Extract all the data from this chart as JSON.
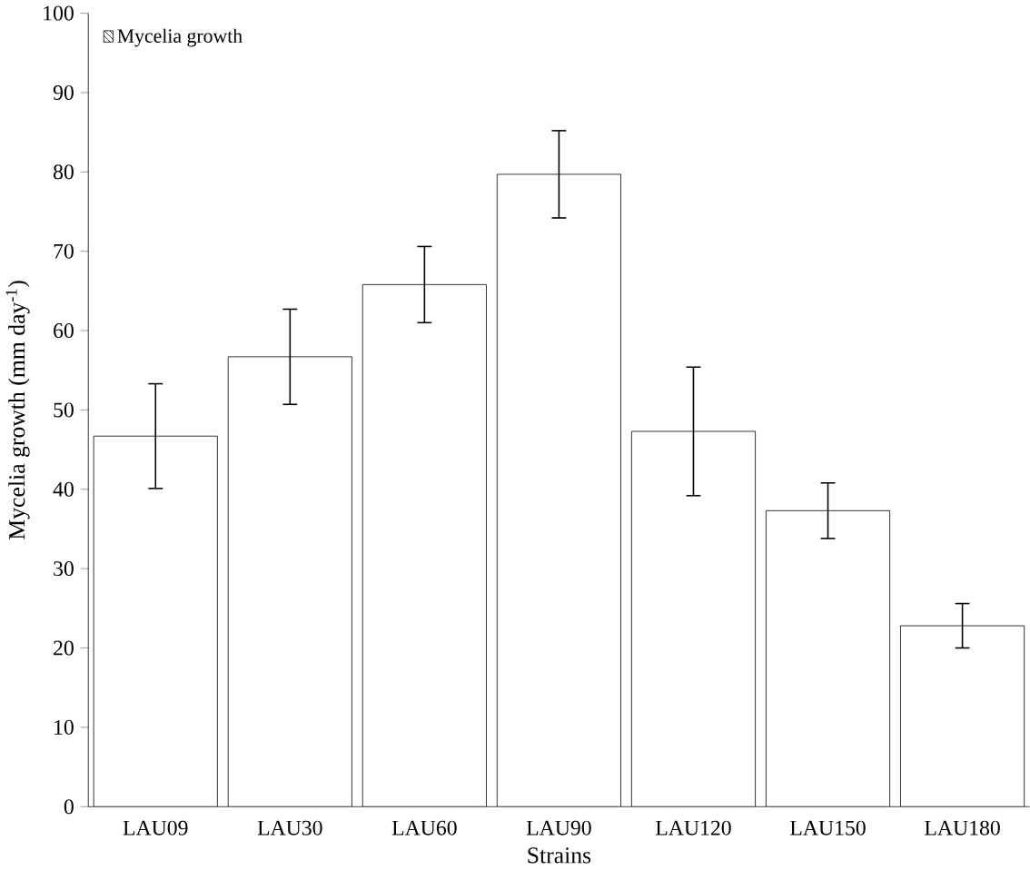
{
  "chart_data": {
    "type": "bar",
    "xlabel": "Strains",
    "ylabel": "Mycelia growth (mm day$^{-1}$)",
    "categories": [
      "LAU09",
      "LAU30",
      "LAU60",
      "LAU90",
      "LAU120",
      "LAU150",
      "LAU180"
    ],
    "series": [
      {
        "name": "Mycelia growth",
        "color": "#ffffff",
        "values": [
          46.7,
          56.7,
          65.8,
          79.7,
          47.3,
          37.3,
          22.8
        ],
        "errors": [
          6.6,
          6,
          4.8,
          5.5,
          8.1,
          3.5,
          2.8
        ]
      }
    ],
    "ylim": [
      0,
      100
    ],
    "yticks": [
      0,
      10,
      20,
      30,
      40,
      50,
      60,
      70,
      80,
      90,
      100
    ],
    "legend": "top left",
    "grid": false
  }
}
